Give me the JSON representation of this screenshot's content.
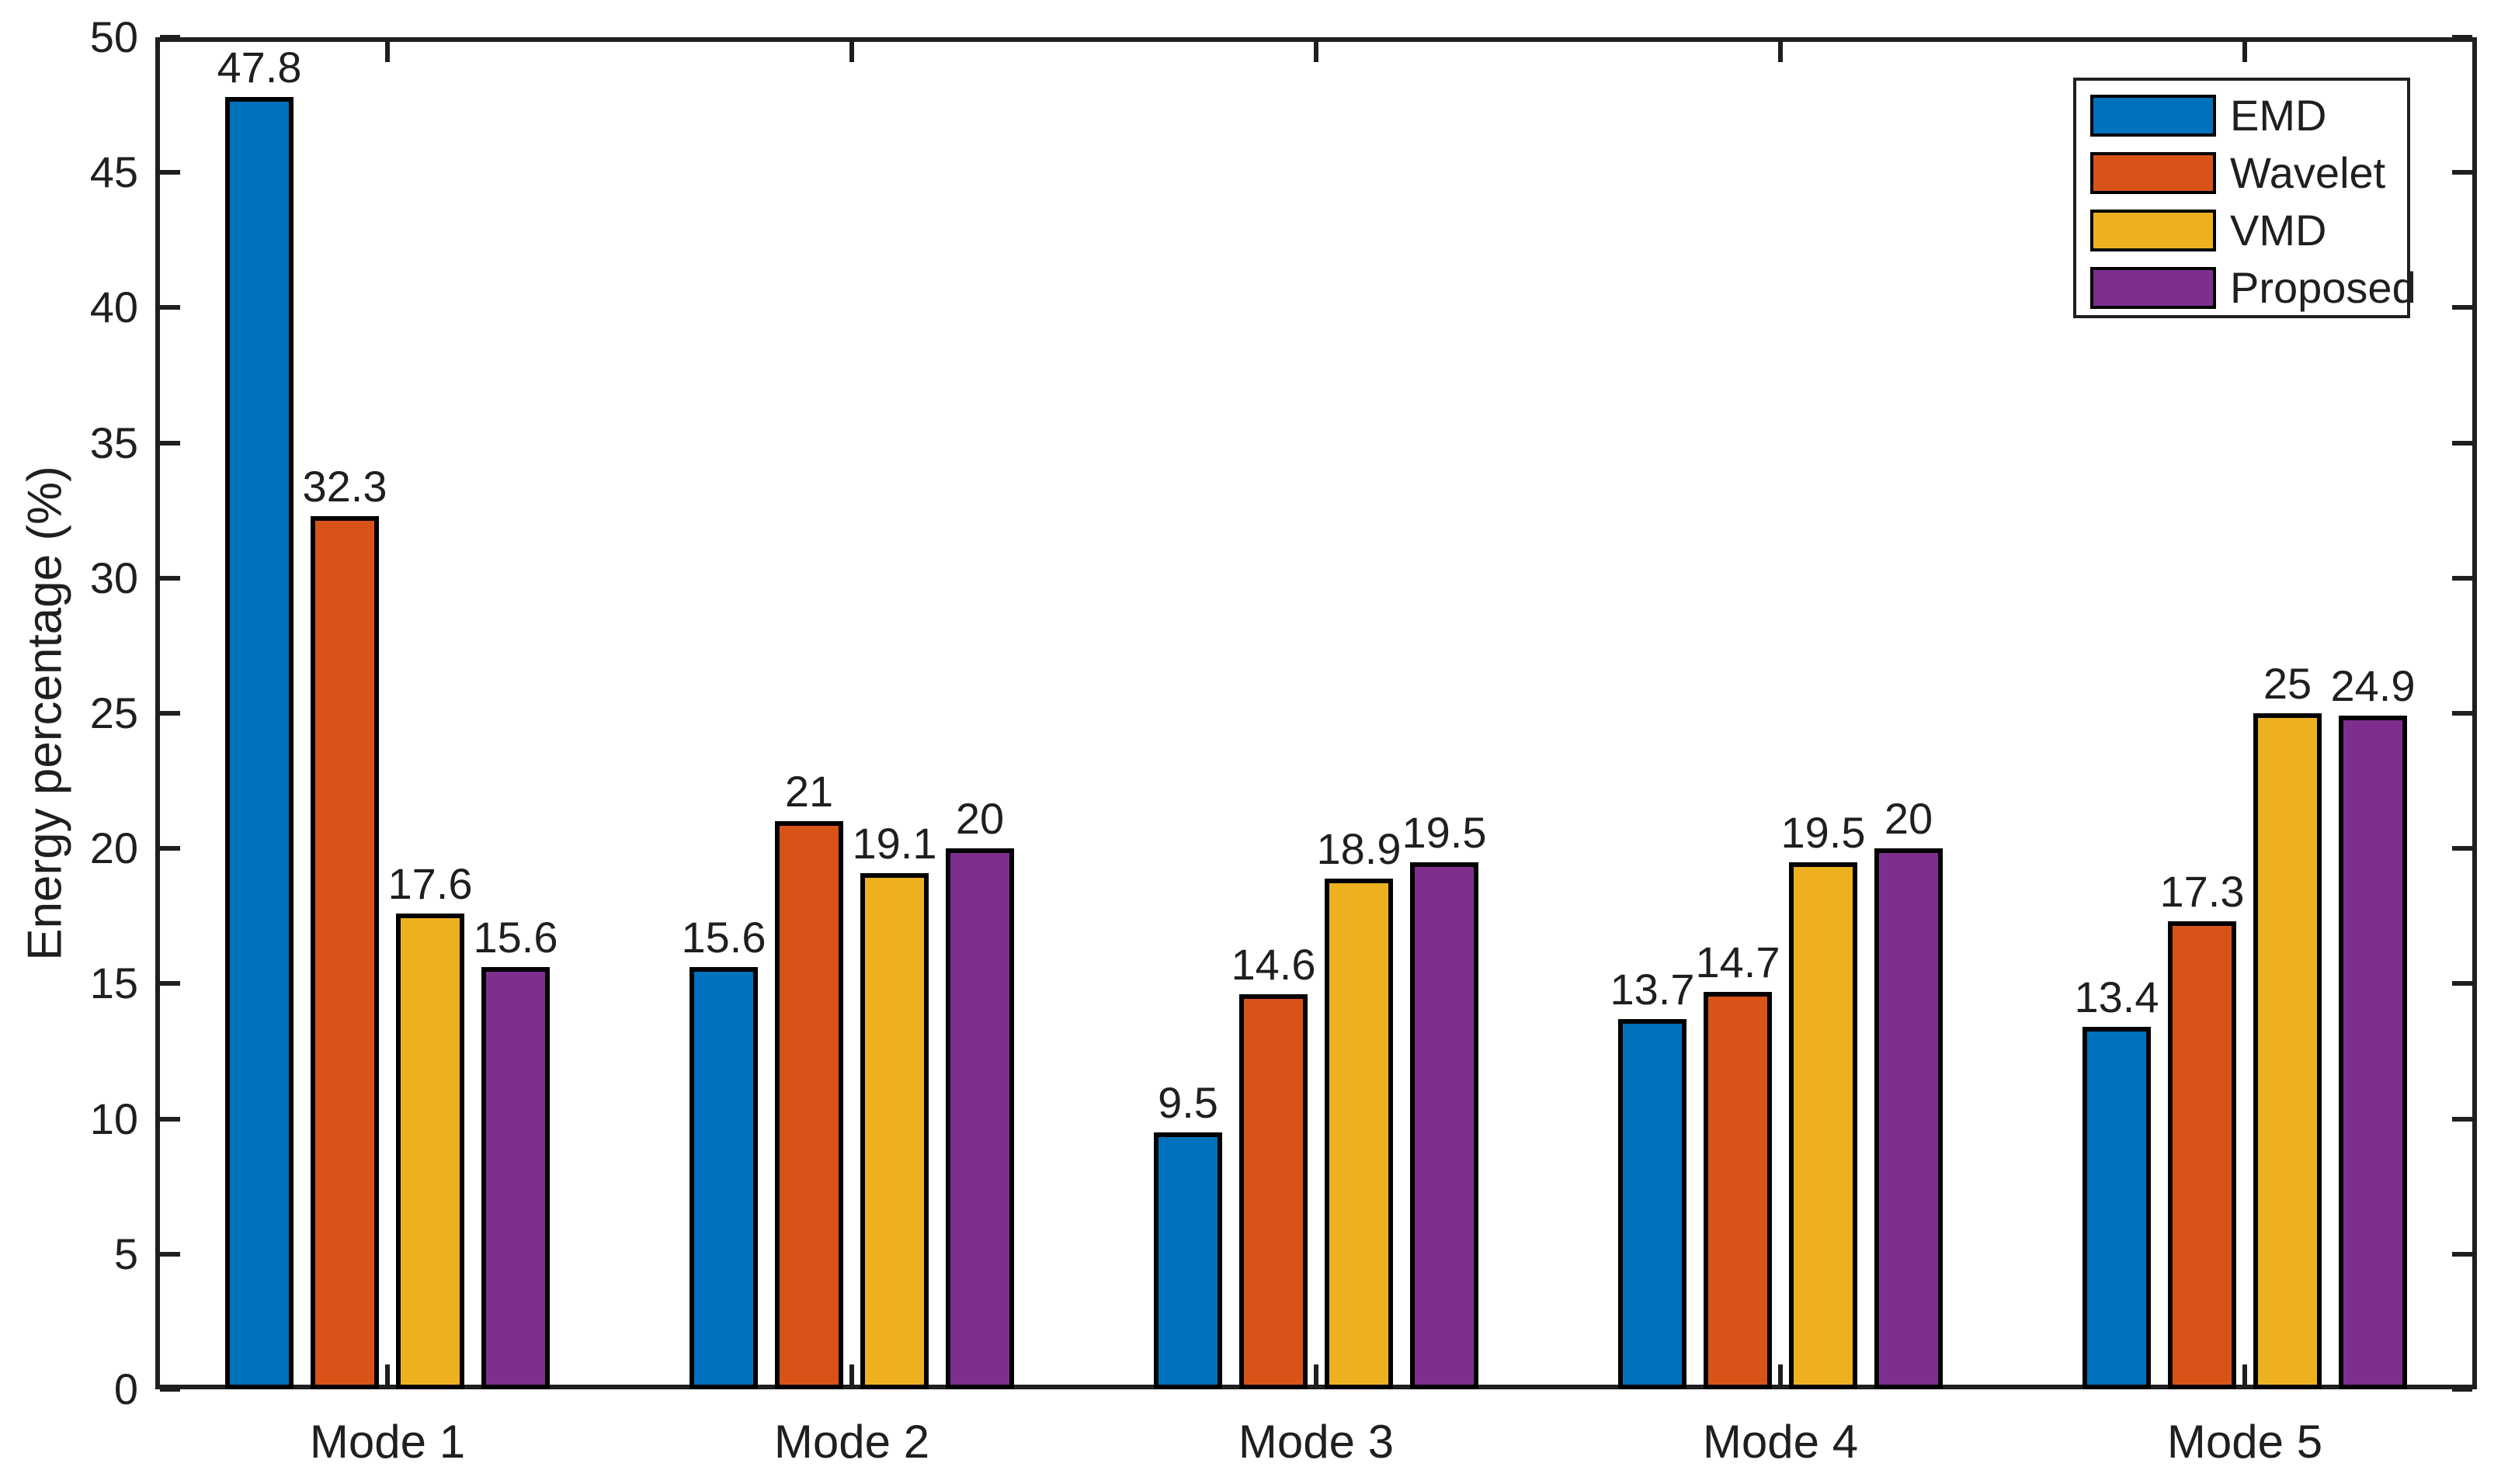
{
  "chart_data": {
    "type": "bar",
    "title": "",
    "xlabel": "",
    "ylabel": "Energy percentage (%)",
    "categories": [
      "Mode 1",
      "Mode 2",
      "Mode 3",
      "Mode 4",
      "Mode 5"
    ],
    "series": [
      {
        "name": "EMD",
        "color": "#0072BD",
        "values": [
          47.8,
          15.6,
          9.5,
          13.7,
          13.4
        ]
      },
      {
        "name": "Wavelet",
        "color": "#D95319",
        "values": [
          32.3,
          21.0,
          14.6,
          14.7,
          17.3
        ]
      },
      {
        "name": "VMD",
        "color": "#EDB120",
        "values": [
          17.6,
          19.1,
          18.9,
          19.5,
          25.0
        ]
      },
      {
        "name": "Proposed",
        "color": "#7E2F8E",
        "values": [
          15.6,
          20.0,
          19.5,
          20.0,
          24.9
        ]
      }
    ],
    "bar_value_labels": [
      [
        "47.8",
        "15.6",
        "9.5",
        "13.7",
        "13.4"
      ],
      [
        "32.3",
        "21",
        "14.6",
        "14.7",
        "17.3"
      ],
      [
        "17.6",
        "19.1",
        "18.9",
        "19.5",
        "25"
      ],
      [
        "15.6",
        "20",
        "19.5",
        "20",
        "24.9"
      ]
    ],
    "ylim": [
      0,
      50
    ],
    "yticks": [
      0,
      5,
      10,
      15,
      20,
      25,
      30,
      35,
      40,
      45,
      50
    ],
    "grid": false,
    "legend_position": "northeast",
    "axis_color": "#1f1f1f",
    "bar_edge_color": "#000000",
    "background_color": "#ffffff"
  }
}
